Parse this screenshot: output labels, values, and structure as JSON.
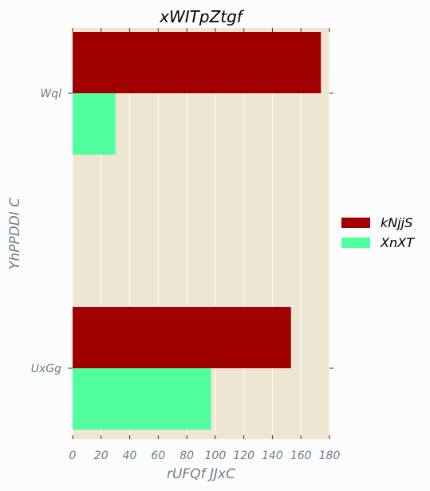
{
  "chart_data": {
    "type": "bar",
    "orientation": "horizontal",
    "title": "xWITpZtgf",
    "xlabel": "rUFQf  JJxC",
    "ylabel": "YhPPDDI C",
    "categories": [
      "Wql",
      "UxGg"
    ],
    "series": [
      {
        "name": "kNjjS",
        "color": "#a00000",
        "values": [
          174,
          153
        ]
      },
      {
        "name": "XnXT",
        "color": "#52ff9e",
        "values": [
          30,
          97
        ]
      }
    ],
    "xlim": [
      0,
      180
    ],
    "xticks": [
      0,
      20,
      40,
      60,
      80,
      100,
      120,
      140,
      160,
      180
    ],
    "grid": true,
    "legend_position": "right",
    "background": "#ede6d3"
  }
}
